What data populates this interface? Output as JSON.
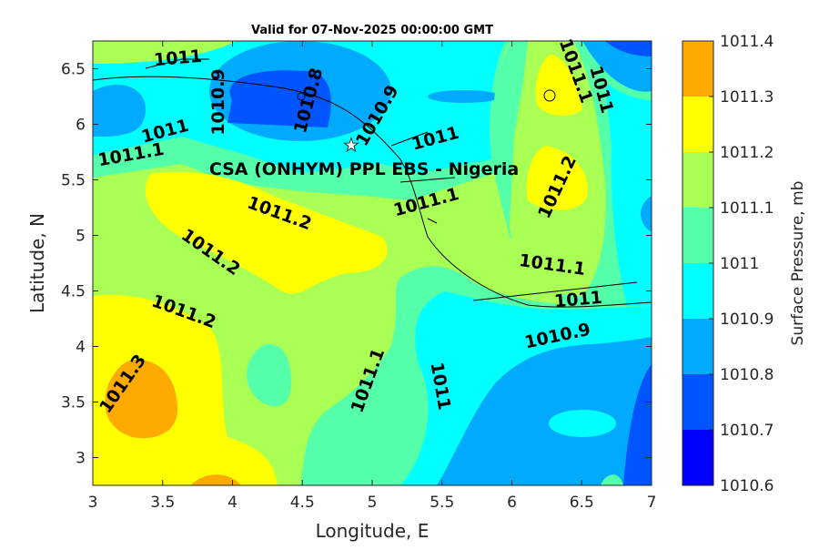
{
  "chart_data": {
    "type": "heatmap",
    "subtype": "filled-contour-map",
    "title": "Valid for 07-Nov-2025 00:00:00 GMT",
    "xlabel": "Longitude, E",
    "ylabel": "Latitude, N",
    "xlim": [
      3,
      7
    ],
    "ylim": [
      2.75,
      6.75
    ],
    "xticks": [
      "3",
      "3.5",
      "4",
      "4.5",
      "5",
      "5.5",
      "6",
      "6.5",
      "7"
    ],
    "yticks": [
      "3",
      "3.5",
      "4",
      "4.5",
      "5",
      "5.5",
      "6",
      "6.5"
    ],
    "colorbar": {
      "label": "Surface Pressure, mb",
      "ticks": [
        "1010.6",
        "1010.7",
        "1010.8",
        "1010.9",
        "1011",
        "1011.1",
        "1011.2",
        "1011.3",
        "1011.4"
      ],
      "colors": [
        "#0000ff",
        "#0055ff",
        "#00aaff",
        "#00ffff",
        "#55ffaa",
        "#aaff55",
        "#ffff00",
        "#ffaa00",
        "#ff5500"
      ]
    },
    "site_label": "CSA (ONHYM) PPL EBS - Nigeria",
    "site_location": {
      "lon": 4.85,
      "lat": 5.75
    },
    "contour_labels": [
      "1011",
      "1010.9",
      "1010.8",
      "1010.9",
      "1011",
      "1011.1",
      "1011",
      "1011.1",
      "1011.1",
      "1011",
      "1011.2",
      "1011.2",
      "1011.2",
      "1011.2",
      "1011.1",
      "1011",
      "1011.3",
      "1011.1",
      "1011",
      "1010.9"
    ]
  }
}
